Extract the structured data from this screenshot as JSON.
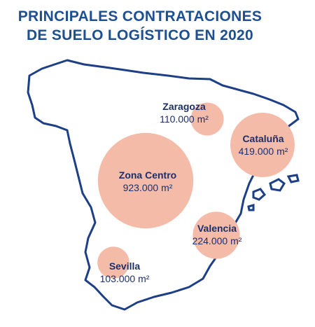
{
  "title_lines": [
    "PRINCIPALES CONTRATACIONES",
    "DE SUELO LOGÍSTICO EN 2020"
  ],
  "bubble_color": "#f5bba9",
  "regions": [
    {
      "name": "Zaragoza",
      "value": 110000,
      "value_label": "110.000 m²"
    },
    {
      "name": "Cataluña",
      "value": 419000,
      "value_label": "419.000 m²"
    },
    {
      "name": "Zona Centro",
      "value": 923000,
      "value_label": "923.000 m²"
    },
    {
      "name": "Valencia",
      "value": 224000,
      "value_label": "224.000 m²"
    },
    {
      "name": "Sevilla",
      "value": 103000,
      "value_label": "103.000 m²"
    }
  ]
}
